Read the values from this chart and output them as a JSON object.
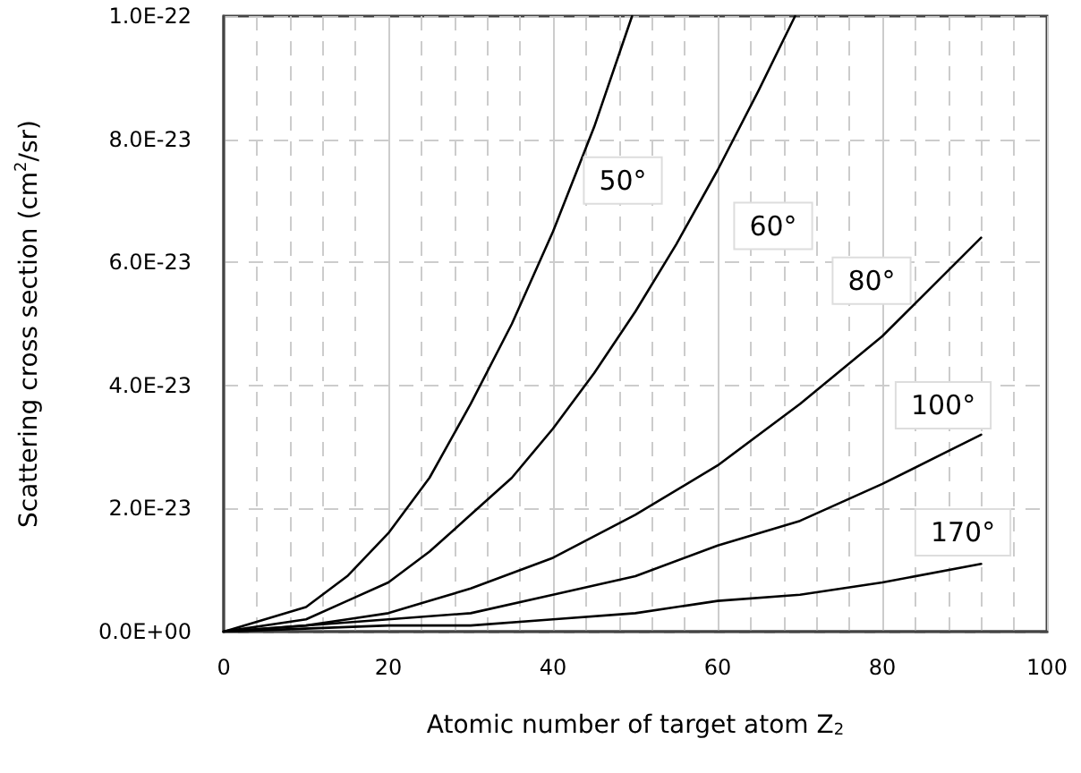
{
  "chart_data": {
    "type": "line",
    "xlabel": "Atomic number of target atom Z$_{2}$",
    "ylabel": "Scattering cross section (cm$^{2}$/sr)",
    "xlim": [
      0,
      100
    ],
    "xticks": [
      0,
      20,
      40,
      60,
      80,
      100
    ],
    "ylim": [
      0,
      1e-22
    ],
    "yticks": [
      {
        "value": 0,
        "label": "0.0E+00"
      },
      {
        "value": 2e-23,
        "label": "2.0E-23"
      },
      {
        "value": 4e-23,
        "label": "4.0E-23"
      },
      {
        "value": 6e-23,
        "label": "6.0E-23"
      },
      {
        "value": 8e-23,
        "label": "8.0E-23"
      },
      {
        "value": 1e-22,
        "label": "1.0E-22"
      }
    ],
    "grid": true,
    "marker": "none",
    "line_style": "solid",
    "legend": false,
    "series": [
      {
        "name": "50°",
        "color": "#000000",
        "x": [
          0,
          10,
          15,
          20,
          25,
          30,
          35,
          40,
          45,
          49.6
        ],
        "values": [
          0,
          4e-24,
          9e-24,
          1.6e-23,
          2.5e-23,
          3.7e-23,
          5e-23,
          6.5e-23,
          8.2e-23,
          1e-22
        ]
      },
      {
        "name": "60°",
        "color": "#000000",
        "x": [
          0,
          10,
          15,
          20,
          25,
          30,
          35,
          40,
          45,
          50,
          55,
          60,
          65,
          69.4
        ],
        "values": [
          0,
          2e-24,
          5e-24,
          8e-24,
          1.3e-23,
          1.9e-23,
          2.5e-23,
          3.3e-23,
          4.2e-23,
          5.2e-23,
          6.3e-23,
          7.5e-23,
          8.8e-23,
          1e-22
        ]
      },
      {
        "name": "80°",
        "color": "#000000",
        "x": [
          0,
          10,
          15,
          20,
          25,
          30,
          40,
          50,
          60,
          70,
          80,
          92
        ],
        "values": [
          0,
          1e-24,
          2e-24,
          3e-24,
          5e-24,
          7e-24,
          1.2e-23,
          1.9e-23,
          2.7e-23,
          3.7e-23,
          4.8e-23,
          6.4e-23
        ]
      },
      {
        "name": "100°",
        "color": "#000000",
        "x": [
          0,
          20,
          30,
          40,
          50,
          60,
          70,
          80,
          92
        ],
        "values": [
          0,
          2e-24,
          3e-24,
          6e-24,
          9e-24,
          1.4e-23,
          1.8e-23,
          2.4e-23,
          3.2e-23
        ]
      },
      {
        "name": "170°",
        "color": "#000000",
        "x": [
          0,
          20,
          30,
          40,
          50,
          60,
          70,
          80,
          92
        ],
        "values": [
          0,
          1e-24,
          1e-24,
          2e-24,
          3e-24,
          5e-24,
          6e-24,
          8e-24,
          1.1e-23
        ]
      }
    ]
  }
}
